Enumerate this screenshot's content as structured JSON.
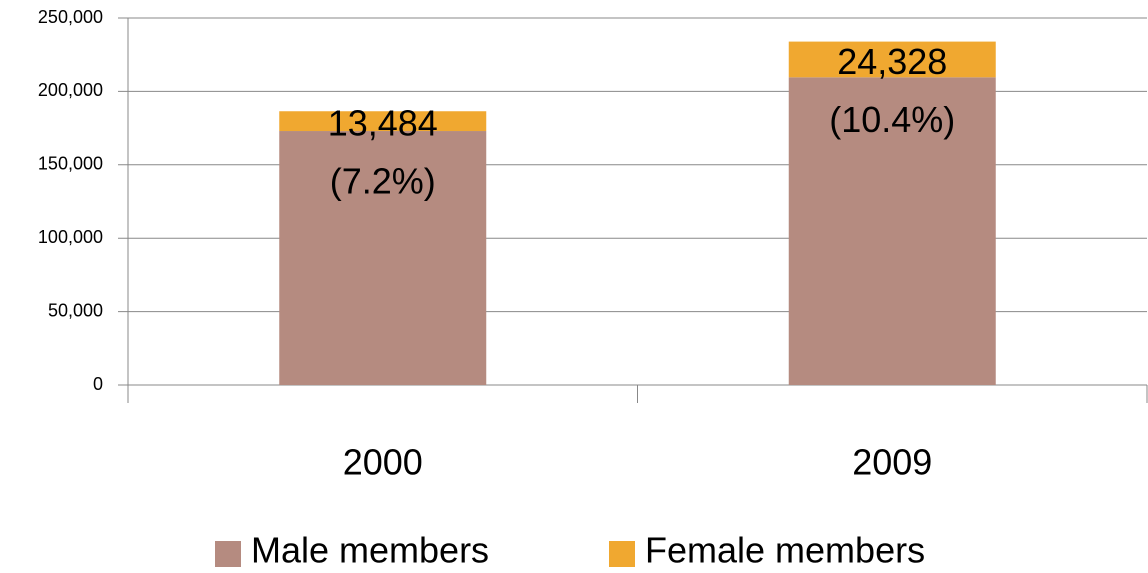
{
  "chart_data": {
    "type": "stacked_bar",
    "categories": [
      "2000",
      "2009"
    ],
    "series": [
      {
        "name": "Male members",
        "color": "#b58b80",
        "values": [
          173000,
          209600
        ]
      },
      {
        "name": "Female members",
        "color": "#f0a830",
        "values": [
          13484,
          24328
        ],
        "value_labels": [
          [
            "13,484",
            "(7.2%)"
          ],
          [
            "24,328",
            "(10.4%)"
          ]
        ]
      }
    ],
    "ylim": [
      0,
      250000
    ],
    "yticks": [
      0,
      {
        "value": 50000,
        "label": "50,000"
      },
      {
        "value": 100000,
        "label": "100,000"
      },
      {
        "value": 150000,
        "label": "150,000"
      },
      {
        "value": 200000,
        "label": "200,000"
      },
      {
        "value": 250000,
        "label": "250,000"
      }
    ],
    "grid": true,
    "legend": "bottom"
  }
}
